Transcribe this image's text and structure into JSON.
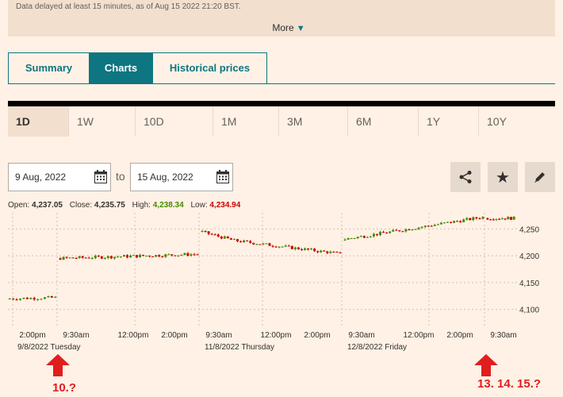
{
  "notice": {
    "delay_text": "Data delayed at least 15 minutes, as of Aug 15 2022 21:20 BST.",
    "more_label": "More"
  },
  "tabs": [
    {
      "label": "Summary",
      "active": false
    },
    {
      "label": "Charts",
      "active": true
    },
    {
      "label": "Historical prices",
      "active": false
    }
  ],
  "ranges": [
    {
      "label": "1D",
      "active": true
    },
    {
      "label": "1W",
      "active": false
    },
    {
      "label": "10D",
      "active": false
    },
    {
      "label": "1M",
      "active": false
    },
    {
      "label": "3M",
      "active": false
    },
    {
      "label": "6M",
      "active": false
    },
    {
      "label": "1Y",
      "active": false
    },
    {
      "label": "10Y",
      "active": false
    }
  ],
  "date_range": {
    "from": "9 Aug, 2022",
    "to_label": "to",
    "to": "15 Aug, 2022"
  },
  "tools": {
    "share_icon": "share-icon",
    "favourite_icon": "star-icon",
    "edit_icon": "pencil-icon"
  },
  "quote": {
    "open_label": "Open:",
    "open": "4,237.05",
    "close_label": "Close:",
    "close": "4,235.75",
    "high_label": "High:",
    "high": "4,238.34",
    "low_label": "Low:",
    "low": "4,234.94"
  },
  "colors": {
    "accent": "#0d7680",
    "up": "#458b00",
    "down": "#cc0000",
    "annotation": "#e01e1e"
  },
  "chart_data": {
    "type": "candlestick",
    "y_ticks": [
      4100,
      4150,
      4200,
      4250
    ],
    "ylim": [
      4070,
      4280
    ],
    "grid": true,
    "x_tick_labels": [
      "2:00pm",
      "9:30am",
      "12:00pm",
      "2:00pm",
      "9:30am",
      "12:00pm",
      "2:00pm",
      "9:30am",
      "12:00pm",
      "2:00pm",
      "9:30am"
    ],
    "day_labels": [
      "9/8/2022 Tuesday",
      "11/8/2022 Thursday",
      "12/8/2022 Friday"
    ],
    "sessions": [
      {
        "start": 4120,
        "end": 4122,
        "n": 14,
        "low": 4115,
        "high": 4125
      },
      {
        "start": 4195,
        "end": 4203,
        "n": 44,
        "low": 4190,
        "high": 4210
      },
      {
        "start": 4245,
        "end": 4210,
        "n": 44,
        "low": 4205,
        "high": 4260
      },
      {
        "start": 4230,
        "end": 4272,
        "n": 44,
        "low": 4225,
        "high": 4276
      },
      {
        "start": 4270,
        "end": 4270,
        "n": 10,
        "low": 4265,
        "high": 4280
      }
    ]
  },
  "annotations": {
    "left": "10.?",
    "right": "13. 14. 15.?"
  }
}
